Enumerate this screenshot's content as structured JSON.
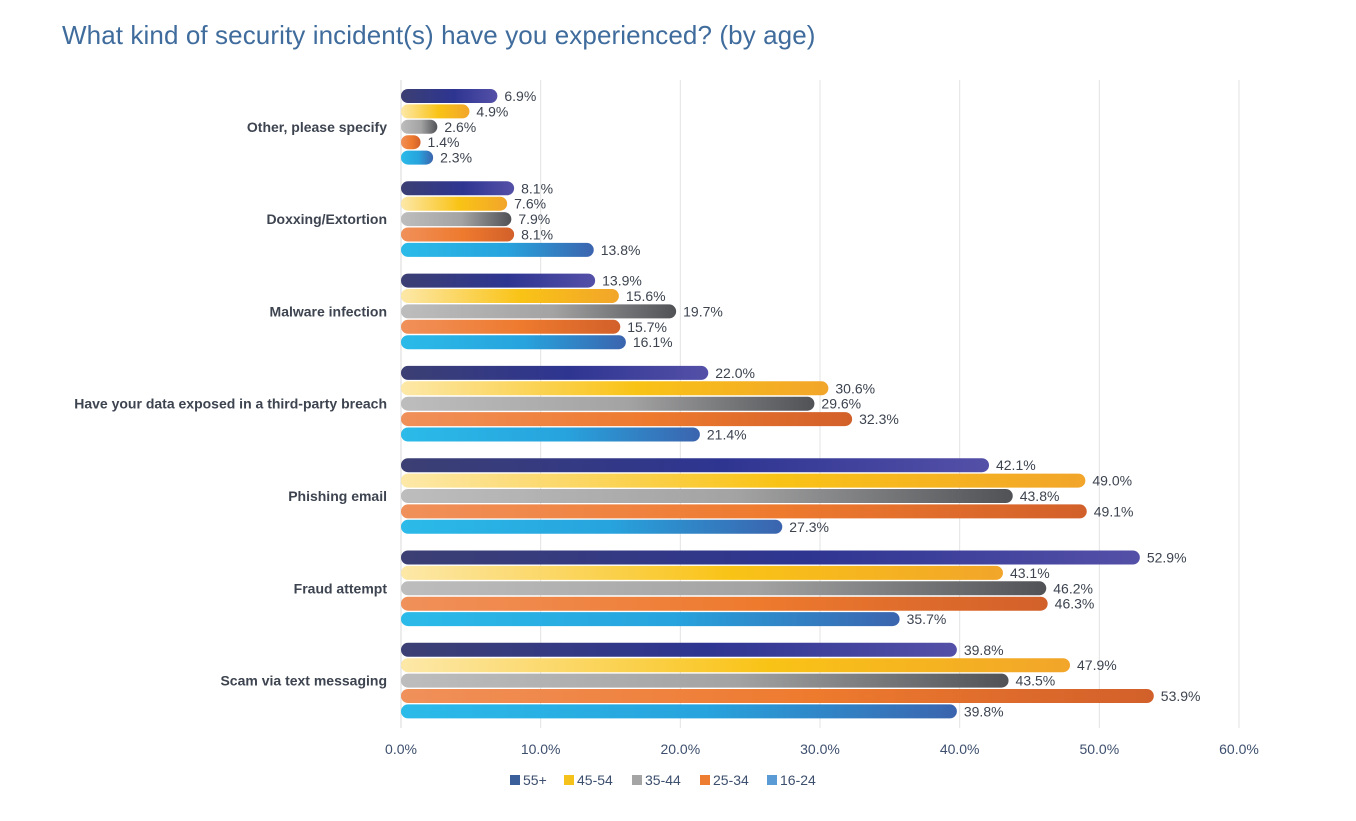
{
  "chart_data": {
    "type": "bar",
    "orientation": "horizontal",
    "title": "What kind of security incident(s) have you experienced? (by age)",
    "xlabel": "",
    "ylabel": "",
    "xlim": [
      0,
      60
    ],
    "x_ticks": [
      "0.0%",
      "10.0%",
      "20.0%",
      "30.0%",
      "40.0%",
      "50.0%",
      "60.0%"
    ],
    "x_tick_values": [
      0,
      10,
      20,
      30,
      40,
      50,
      60
    ],
    "grid": true,
    "legend_position": "bottom",
    "categories": [
      "Other, please specify",
      "Doxxing/Extortion",
      "Malware infection",
      "Have your data exposed in a third-party breach",
      "Phishing email",
      "Fraud attempt",
      "Scam via text messaging"
    ],
    "series": [
      {
        "name": "55+",
        "legend_color": "#3a5f9b",
        "gradient": [
          "#3b3f73",
          "#2e3591",
          "#5450a8"
        ],
        "values": [
          6.9,
          8.1,
          13.9,
          22.0,
          42.1,
          52.9,
          39.8
        ],
        "labels": [
          "6.9%",
          "8.1%",
          "13.9%",
          "22.0%",
          "42.1%",
          "52.9%",
          "39.8%"
        ]
      },
      {
        "name": "45-54",
        "legend_color": "#f5c21b",
        "gradient": [
          "#fde8a8",
          "#f9c316",
          "#f2a52a"
        ],
        "values": [
          4.9,
          7.6,
          15.6,
          30.6,
          49.0,
          43.1,
          47.9
        ],
        "labels": [
          "4.9%",
          "7.6%",
          "15.6%",
          "30.6%",
          "49.0%",
          "43.1%",
          "47.9%"
        ]
      },
      {
        "name": "35-44",
        "legend_color": "#a5a5a5",
        "gradient": [
          "#bdbdbd",
          "#a3a3a3",
          "#505256"
        ],
        "values": [
          2.6,
          7.9,
          19.7,
          29.6,
          43.8,
          46.2,
          43.5
        ],
        "labels": [
          "2.6%",
          "7.9%",
          "19.7%",
          "29.6%",
          "43.8%",
          "46.2%",
          "43.5%"
        ]
      },
      {
        "name": "25-34",
        "legend_color": "#ed7d31",
        "gradient": [
          "#f0905a",
          "#ee7a2e",
          "#d2602a"
        ],
        "values": [
          1.4,
          8.1,
          15.7,
          32.3,
          49.1,
          46.3,
          53.9
        ],
        "labels": [
          "1.4%",
          "8.1%",
          "15.7%",
          "32.3%",
          "49.1%",
          "46.3%",
          "53.9%"
        ]
      },
      {
        "name": "16-24",
        "legend_color": "#5b9bd5",
        "gradient": [
          "#2bbbe9",
          "#27a3dd",
          "#3b64ae"
        ],
        "values": [
          2.3,
          13.8,
          16.1,
          21.4,
          27.3,
          35.7,
          39.8
        ],
        "labels": [
          "2.3%",
          "13.8%",
          "16.1%",
          "21.4%",
          "27.3%",
          "35.7%",
          "39.8%"
        ]
      }
    ]
  }
}
